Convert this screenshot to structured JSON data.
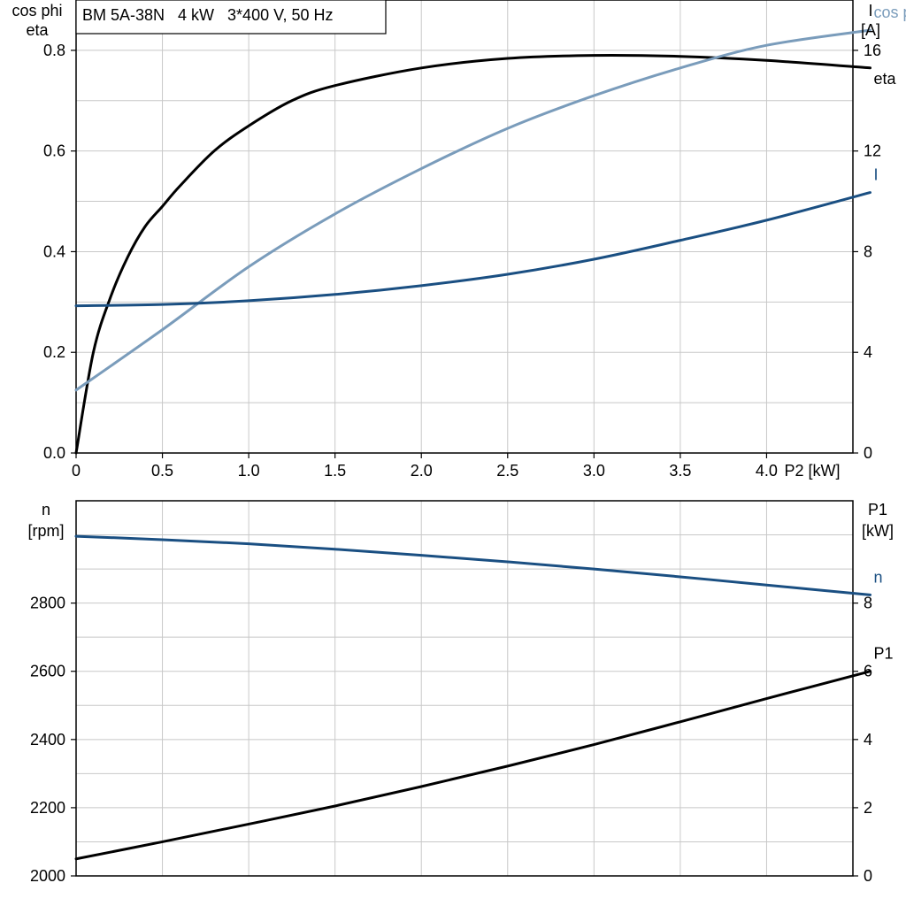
{
  "chart_data": [
    {
      "type": "line",
      "title": "BM 5A-38N   4 kW   3*400 V, 50 Hz",
      "xlabel": "P2 [kW]",
      "xlim": [
        0,
        4.5
      ],
      "x_ticks": [
        "0",
        "0.5",
        "1.0",
        "1.5",
        "2.0",
        "2.5",
        "3.0",
        "3.5",
        "4.0"
      ],
      "ylabel_left": [
        "cos phi",
        "eta"
      ],
      "ylim_left": [
        0,
        0.9
      ],
      "y_ticks_left": [
        "0.0",
        "0.2",
        "0.4",
        "0.6",
        "0.8"
      ],
      "ylabel_right": [
        "I",
        "[A]"
      ],
      "ylim_right": [
        0,
        18
      ],
      "y_ticks_right": [
        "0",
        "4",
        "8",
        "12",
        "16"
      ],
      "grid": true,
      "series": [
        {
          "name": "eta",
          "axis": "left",
          "color": "#000000",
          "x": [
            0,
            0.1,
            0.2,
            0.3,
            0.4,
            0.5,
            0.6,
            0.8,
            1.0,
            1.25,
            1.5,
            2.0,
            2.5,
            3.0,
            3.5,
            4.0,
            4.6
          ],
          "y": [
            0.0,
            0.2,
            0.31,
            0.39,
            0.45,
            0.49,
            0.53,
            0.6,
            0.65,
            0.7,
            0.73,
            0.765,
            0.784,
            0.79,
            0.788,
            0.78,
            0.765
          ]
        },
        {
          "name": "cos phi",
          "axis": "left",
          "color": "#7a9cbb",
          "x": [
            0,
            0.5,
            1.0,
            1.5,
            2.0,
            2.5,
            3.0,
            3.5,
            4.0,
            4.6
          ],
          "y": [
            0.125,
            0.245,
            0.37,
            0.475,
            0.565,
            0.645,
            0.71,
            0.765,
            0.81,
            0.84
          ]
        },
        {
          "name": "I",
          "axis": "right",
          "color": "#1a4f82",
          "x": [
            0,
            0.5,
            1.0,
            1.5,
            2.0,
            2.5,
            3.0,
            3.5,
            4.0,
            4.6
          ],
          "y": [
            5.85,
            5.9,
            6.05,
            6.3,
            6.65,
            7.1,
            7.7,
            8.45,
            9.25,
            10.35
          ]
        }
      ]
    },
    {
      "type": "line",
      "xlim": [
        0,
        4.5
      ],
      "ylabel_left": [
        "n",
        "[rpm]"
      ],
      "ylim_left": [
        2000,
        3100
      ],
      "y_ticks_left": [
        "2000",
        "2200",
        "2400",
        "2600",
        "2800"
      ],
      "ylabel_right": [
        "P1",
        "[kW]"
      ],
      "ylim_right": [
        0,
        11
      ],
      "y_ticks_right": [
        "0",
        "2",
        "4",
        "6",
        "8"
      ],
      "grid": true,
      "series": [
        {
          "name": "n",
          "axis": "left",
          "color": "#1a4f82",
          "x": [
            0,
            0.5,
            1.0,
            1.5,
            2.0,
            2.5,
            3.0,
            3.5,
            4.0,
            4.6
          ],
          "y": [
            2996,
            2986,
            2974,
            2958,
            2940,
            2921,
            2900,
            2877,
            2853,
            2824
          ]
        },
        {
          "name": "P1",
          "axis": "right",
          "color": "#000000",
          "x": [
            0,
            0.5,
            1.0,
            1.5,
            2.0,
            2.5,
            3.0,
            3.5,
            4.0,
            4.6
          ],
          "y": [
            0.5,
            1.0,
            1.52,
            2.05,
            2.62,
            3.22,
            3.85,
            4.52,
            5.2,
            6.0
          ]
        }
      ]
    }
  ]
}
